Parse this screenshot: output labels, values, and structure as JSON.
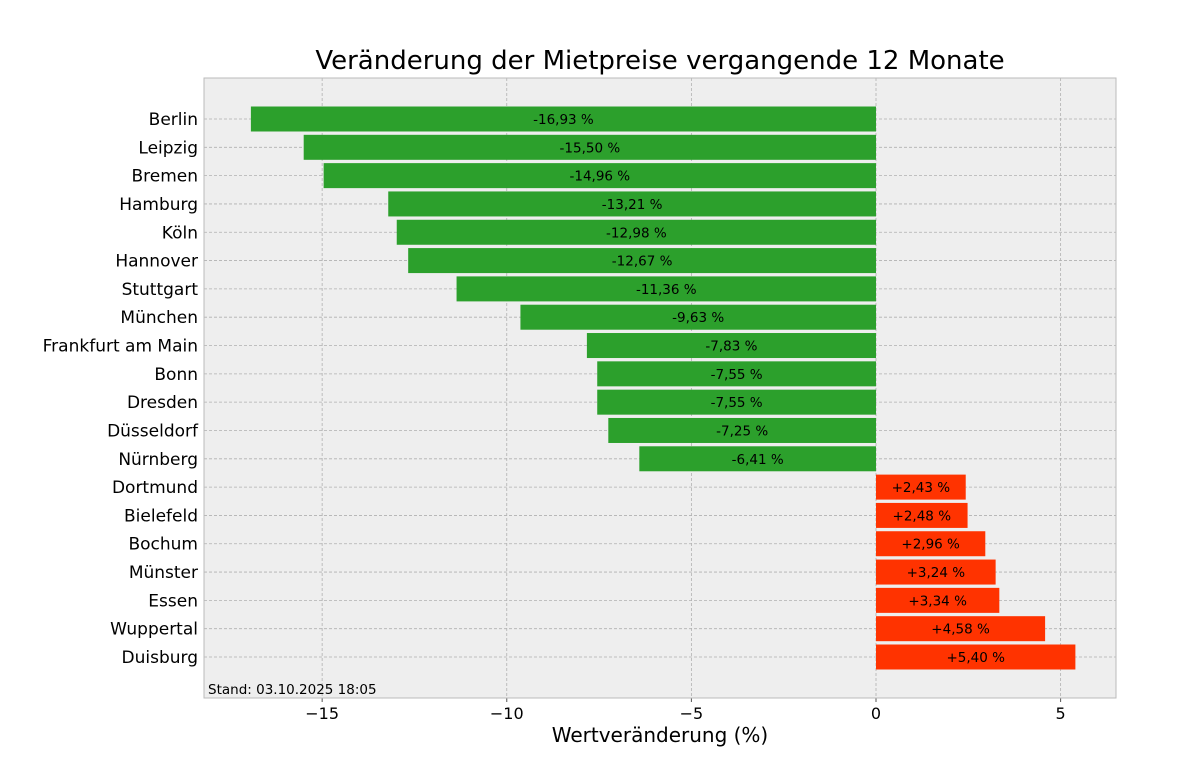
{
  "chart_data": {
    "type": "bar",
    "orientation": "horizontal",
    "title": "Veränderung der Mietpreise vergangende 12 Monate",
    "xlabel": "Wertveränderung (%)",
    "ylabel": "",
    "xlim": [
      -18.2,
      6.5
    ],
    "xticks": [
      -15,
      -10,
      -5,
      0,
      5
    ],
    "xtick_labels": [
      "−15",
      "−10",
      "−5",
      "0",
      "5"
    ],
    "grid": true,
    "legend": "none",
    "colors": {
      "negative": "#2ca02c",
      "positive": "#ff3300",
      "plot_background": "#eeeeee"
    },
    "categories": [
      "Berlin",
      "Leipzig",
      "Bremen",
      "Hamburg",
      "Köln",
      "Hannover",
      "Stuttgart",
      "München",
      "Frankfurt am Main",
      "Bonn",
      "Dresden",
      "Düsseldorf",
      "Nürnberg",
      "Dortmund",
      "Bielefeld",
      "Bochum",
      "Münster",
      "Essen",
      "Wuppertal",
      "Duisburg"
    ],
    "values": [
      -16.93,
      -15.5,
      -14.96,
      -13.21,
      -12.98,
      -12.67,
      -11.36,
      -9.63,
      -7.83,
      -7.55,
      -7.55,
      -7.25,
      -6.41,
      2.43,
      2.48,
      2.96,
      3.24,
      3.34,
      4.58,
      5.4
    ],
    "data_labels": [
      "-16,93 %",
      "-15,50 %",
      "-14,96 %",
      "-13,21 %",
      "-12,98 %",
      "-12,67 %",
      "-11,36 %",
      "-9,63 %",
      "-7,83 %",
      "-7,55 %",
      "-7,55 %",
      "-7,25 %",
      "-6,41 %",
      "+2,43 %",
      "+2,48 %",
      "+2,96 %",
      "+3,24 %",
      "+3,34 %",
      "+4,58 %",
      "+5,40 %"
    ],
    "annotation": "Stand: 03.10.2025 18:05"
  }
}
